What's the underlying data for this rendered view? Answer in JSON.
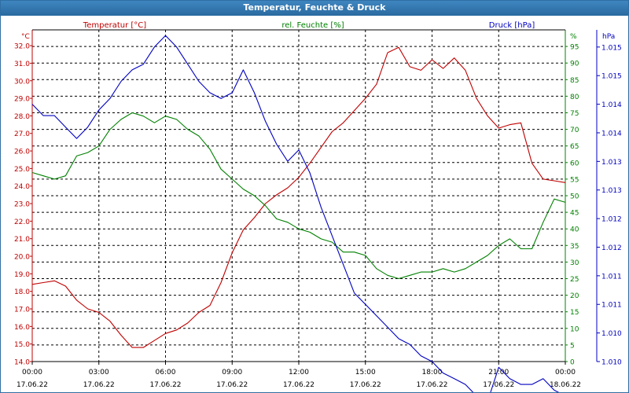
{
  "window": {
    "title": "Temperatur, Feuchte & Druck"
  },
  "colors": {
    "temperature": "#c00000",
    "humidity": "#008000",
    "pressure": "#0000c0",
    "title_bar": "#2f6ea3",
    "grid": "#000000"
  },
  "chart_data": {
    "type": "line",
    "title": "Temperatur, Feuchte & Druck",
    "grid": true,
    "x": {
      "ticks": [
        {
          "time": "00:00",
          "date": "17.06.22"
        },
        {
          "time": "03:00",
          "date": "17.06.22"
        },
        {
          "time": "06:00",
          "date": "17.06.22"
        },
        {
          "time": "09:00",
          "date": "17.06.22"
        },
        {
          "time": "12:00",
          "date": "17.06.22"
        },
        {
          "time": "15:00",
          "date": "17.06.22"
        },
        {
          "time": "18:00",
          "date": "17.06.22"
        },
        {
          "time": "21:00",
          "date": "17.06.22"
        },
        {
          "time": "00:00",
          "date": "18.06.22"
        }
      ],
      "range_hours": [
        0,
        24
      ]
    },
    "axes": {
      "temperature": {
        "label": "Temperatur [°C]",
        "unit": "°C",
        "range": [
          14.0,
          32.9
        ],
        "ticks": [
          "32.0",
          "31.0",
          "30.0",
          "29.0",
          "28.0",
          "27.0",
          "26.0",
          "25.0",
          "24.0",
          "23.0",
          "22.0",
          "21.0",
          "20.0",
          "19.0",
          "18.0",
          "17.0",
          "16.0",
          "15.0",
          "14.0"
        ],
        "tick_values": [
          32,
          31,
          30,
          29,
          28,
          27,
          26,
          25,
          24,
          23,
          22,
          21,
          20,
          19,
          18,
          17,
          16,
          15,
          14
        ]
      },
      "humidity": {
        "label": "rel. Feuchte [%]",
        "unit": "%",
        "range": [
          0,
          100
        ],
        "ticks": [
          "95",
          "90",
          "85",
          "80",
          "75",
          "70",
          "65",
          "60",
          "55",
          "50",
          "45",
          "40",
          "35",
          "30",
          "25",
          "20",
          "15",
          "10",
          "5",
          "0"
        ],
        "tick_values": [
          95,
          90,
          85,
          80,
          75,
          70,
          65,
          60,
          55,
          50,
          45,
          40,
          35,
          30,
          25,
          20,
          15,
          10,
          5,
          0
        ]
      },
      "pressure": {
        "label": "Druck [hPa]",
        "unit": "hPa",
        "range": [
          1.01,
          1.0158
        ],
        "ticks": [
          "1.015",
          "1.015",
          "1.014",
          "1.014",
          "1.013",
          "1.013",
          "1.012",
          "1.012",
          "1.011",
          "1.011",
          "1.010",
          "1.010"
        ],
        "tick_values": [
          1.0155,
          1.015,
          1.0145,
          1.014,
          1.0135,
          1.013,
          1.0125,
          1.012,
          1.0115,
          1.011,
          1.0105,
          1.01
        ]
      }
    },
    "series": [
      {
        "name": "Temperatur [°C]",
        "axis": "temperature",
        "hours": [
          0,
          0.5,
          1,
          1.5,
          2,
          2.5,
          3,
          3.5,
          4,
          4.5,
          5,
          5.5,
          6,
          6.5,
          7,
          7.5,
          8,
          8.5,
          9,
          9.5,
          10,
          10.5,
          11,
          11.5,
          12,
          12.5,
          13,
          13.5,
          14,
          14.5,
          15,
          15.5,
          16,
          16.5,
          17,
          17.5,
          18,
          18.5,
          19,
          19.5,
          20,
          20.5,
          21,
          21.5,
          22,
          22.5,
          23,
          23.5,
          24
        ],
        "values": [
          18.4,
          18.5,
          18.6,
          18.3,
          17.5,
          17,
          16.8,
          16.3,
          15.5,
          14.8,
          14.8,
          15.2,
          15.6,
          15.8,
          16.2,
          16.8,
          17.2,
          18.5,
          20.2,
          21.5,
          22.2,
          23,
          23.5,
          23.9,
          24.5,
          25.3,
          26.2,
          27.1,
          27.6,
          28.3,
          29,
          29.8,
          31.6,
          31.9,
          30.8,
          30.6,
          31.2,
          30.7,
          31.3,
          30.6,
          29,
          28,
          27.3,
          27.5,
          27.6,
          25.3,
          24.4,
          24.3,
          24.2
        ]
      },
      {
        "name": "rel. Feuchte [%]",
        "axis": "humidity",
        "hours": [
          0,
          0.5,
          1,
          1.5,
          2,
          2.5,
          3,
          3.5,
          4,
          4.5,
          5,
          5.5,
          6,
          6.5,
          7,
          7.5,
          8,
          8.5,
          9,
          9.5,
          10,
          10.5,
          11,
          11.5,
          12,
          12.5,
          13,
          13.5,
          14,
          14.5,
          15,
          15.5,
          16,
          16.5,
          17,
          17.5,
          18,
          18.5,
          19,
          19.5,
          20,
          20.5,
          21,
          21.5,
          22,
          22.5,
          23,
          23.5,
          24
        ],
        "values": [
          57,
          56,
          55,
          56,
          62,
          63,
          65,
          70,
          73,
          75,
          74,
          72,
          74,
          73,
          70,
          68,
          64,
          58,
          55,
          52,
          50,
          47,
          43,
          42,
          40,
          39,
          37,
          36,
          33,
          33,
          32,
          28,
          26,
          25,
          26,
          27,
          27,
          28,
          27,
          28,
          30,
          32,
          35,
          37,
          34,
          34,
          42,
          49,
          48
        ]
      },
      {
        "name": "Druck [hPa]",
        "axis": "pressure",
        "hours": [
          0,
          0.5,
          1,
          1.5,
          2,
          2.5,
          3,
          3.5,
          4,
          4.5,
          5,
          5.5,
          6,
          6.5,
          7,
          7.5,
          8,
          8.5,
          9,
          9.5,
          10,
          10.5,
          11,
          11.5,
          12,
          12.5,
          13,
          13.5,
          14,
          14.5,
          15,
          15.5,
          16,
          16.5,
          17,
          17.5,
          18,
          18.5,
          19,
          19.5,
          20,
          20.5,
          21,
          21.5,
          22,
          22.5,
          23,
          23.5,
          24
        ],
        "values": [
          1.0145,
          1.0143,
          1.0143,
          1.0141,
          1.0139,
          1.0141,
          1.0144,
          1.0146,
          1.0149,
          1.0151,
          1.0152,
          1.0155,
          1.0157,
          1.0155,
          1.0152,
          1.0149,
          1.0147,
          1.0146,
          1.0147,
          1.0151,
          1.0147,
          1.0142,
          1.0138,
          1.0135,
          1.0137,
          1.0133,
          1.0127,
          1.0122,
          1.0117,
          1.0112,
          1.011,
          1.0108,
          1.0106,
          1.0104,
          1.0103,
          1.0101,
          1.01,
          1.0098,
          1.0097,
          1.0096,
          1.0094,
          1.0093,
          1.0099,
          1.0097,
          1.0096,
          1.0096,
          1.0097,
          1.0095,
          1.0094
        ]
      }
    ]
  }
}
